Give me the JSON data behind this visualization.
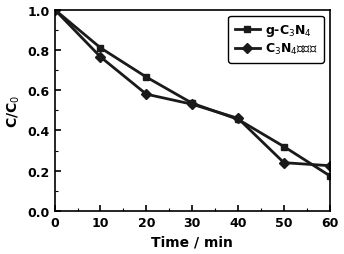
{
  "line1_label": "g-C$_3$N$_4$",
  "line2_label": "C$_3$N$_4$纳米棒",
  "line1_x": [
    0,
    10,
    20,
    30,
    40,
    50,
    60
  ],
  "line1_y": [
    1.0,
    0.81,
    0.665,
    0.535,
    0.455,
    0.32,
    0.175
  ],
  "line2_x": [
    0,
    10,
    20,
    30,
    40,
    50,
    60
  ],
  "line2_y": [
    1.0,
    0.765,
    0.58,
    0.53,
    0.46,
    0.24,
    0.225
  ],
  "xlabel": "Time / min",
  "ylabel": "C/C$_0$",
  "xlim": [
    0,
    60
  ],
  "ylim": [
    0.0,
    1.0
  ],
  "xticks": [
    0,
    10,
    20,
    30,
    40,
    50,
    60
  ],
  "yticks": [
    0.0,
    0.2,
    0.4,
    0.6,
    0.8,
    1.0
  ],
  "line_color": "#1a1a1a",
  "marker1": "s",
  "marker2": "D",
  "linewidth": 2.0,
  "markersize": 5
}
